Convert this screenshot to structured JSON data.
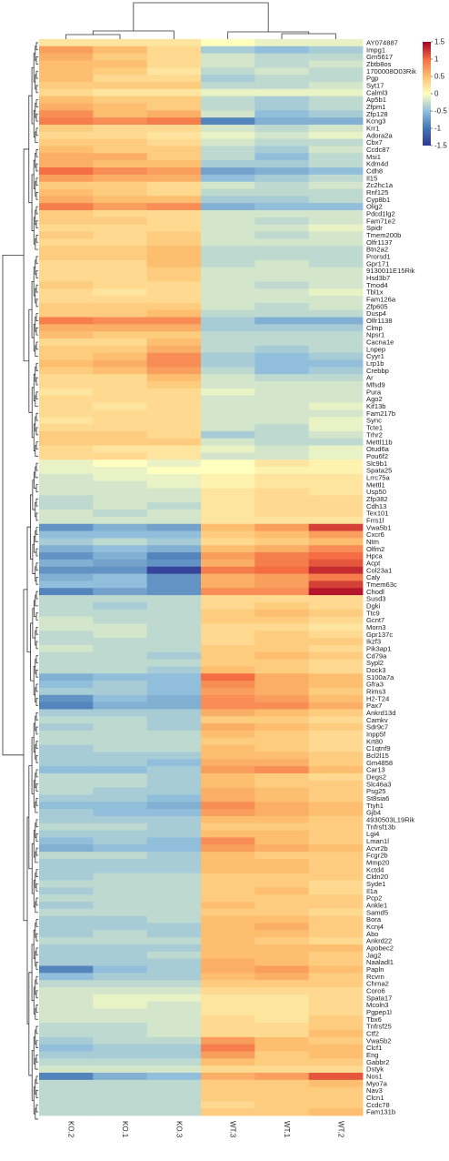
{
  "chart_data": {
    "type": "heatmap",
    "title": "",
    "xlabel": "",
    "ylabel": "",
    "columns": [
      "KO.2",
      "KO.1",
      "KO.3",
      "WT.3",
      "WT.1",
      "WT.2"
    ],
    "rows": [
      "AY074887",
      "Impg1",
      "Gm5617",
      "Zbtb8os",
      "1700008O03Rik",
      "Pgp",
      "Syt17",
      "Calml3",
      "Ap5b1",
      "Zfpm1",
      "Zfp128",
      "Kcng3",
      "Krr1",
      "Adora2a",
      "Cbx7",
      "Ccdc87",
      "Msi1",
      "Kdm4d",
      "Cdh8",
      "Il15",
      "Zc2hc1a",
      "Rnf125",
      "Cyp8b1",
      "Olig2",
      "Pdcd1lg2",
      "Fam71e2",
      "Spidr",
      "Tmem200b",
      "Olfr1137",
      "Btn2a2",
      "Prorsd1",
      "Gpr171",
      "9130011E15Rik",
      "Hsd3b7",
      "Tmod4",
      "Tbl1x",
      "Fam126a",
      "Zfp605",
      "Dusp4",
      "Olfr1138",
      "Clmp",
      "Npsr1",
      "Cacna1e",
      "Lnpep",
      "Cyyr1",
      "Lrp1b",
      "Crebbp",
      "Ar",
      "Mfsd9",
      "Pura",
      "Ago2",
      "Kif13b",
      "Fam217b",
      "Sync",
      "Tcte1",
      "Trhr2",
      "Mettl11b",
      "Otud6a",
      "Pou6f2",
      "Slc9b1",
      "Spata25",
      "Lrrc75a",
      "Mettl1",
      "Usp50",
      "Zfp382",
      "Cdh13",
      "Tex101",
      "Frrs1l",
      "Vwa5b1",
      "Cxcr6",
      "Ntm",
      "Olfm2",
      "Hpca",
      "Acpt",
      "Col23a1",
      "Caly",
      "Tmem63c",
      "Chodl",
      "Susd3",
      "Dgki",
      "Ttc9",
      "Gcnt7",
      "Morn3",
      "Gpr137c",
      "Ikzf3",
      "Pik3ap1",
      "Cd79a",
      "Sypl2",
      "Dock3",
      "S100a7a",
      "Gfra3",
      "Rims3",
      "H2-T24",
      "Pax7",
      "Ankrd13d",
      "Camkv",
      "Sdr9c7",
      "Inpp5f",
      "Krt80",
      "C1qtnf9",
      "Bcl2l15",
      "Gm4858",
      "Car13",
      "Degs2",
      "Slc46a3",
      "Psg25",
      "St8sia6",
      "Ttyh1",
      "Gjb4",
      "4930503L19Rik",
      "Tnfrsf13b",
      "Lgi4",
      "Lman1l",
      "Acvr2b",
      "Fcgr2b",
      "Mmp20",
      "Kctd4",
      "Cldn20",
      "Syde1",
      "Il1a",
      "Pcp2",
      "Ankle1",
      "Samd5",
      "Bora",
      "Kcnj4",
      "Abo",
      "Ankrd22",
      "Apobec2",
      "Jag2",
      "Naaladl1",
      "Papln",
      "Rcvrn",
      "Chrna2",
      "Coro6",
      "Spata17",
      "Mcoln3",
      "Pgpep1l",
      "Tbx6",
      "Tnfrsf25",
      "Ctf2",
      "Vwa5b2",
      "Clcf1",
      "Eng",
      "Gabbr2",
      "Dstyk",
      "Nos1",
      "Myo7a",
      "Nav3",
      "Clcn1",
      "Ccdc78",
      "Fam131b"
    ],
    "values": [
      [
        0.2,
        0.2,
        0.2,
        0.0,
        -0.1,
        -0.1
      ],
      [
        0.7,
        0.5,
        0.3,
        -0.4,
        -0.5,
        -0.4
      ],
      [
        0.6,
        0.4,
        0.3,
        -0.2,
        -0.3,
        -0.3
      ],
      [
        0.5,
        0.5,
        0.3,
        -0.2,
        -0.3,
        -0.2
      ],
      [
        0.5,
        0.4,
        0.2,
        -0.3,
        -0.2,
        -0.3
      ],
      [
        0.5,
        0.3,
        0.3,
        -0.4,
        -0.3,
        -0.3
      ],
      [
        0.4,
        0.4,
        0.4,
        -0.3,
        -0.3,
        -0.2
      ],
      [
        0.3,
        0.2,
        0.2,
        -0.1,
        -0.1,
        -0.1
      ],
      [
        0.5,
        0.4,
        0.4,
        -0.3,
        -0.4,
        -0.3
      ],
      [
        0.6,
        0.5,
        0.4,
        -0.3,
        -0.4,
        -0.3
      ],
      [
        0.8,
        0.5,
        0.6,
        -0.2,
        -0.5,
        -0.4
      ],
      [
        0.9,
        0.8,
        0.9,
        -0.9,
        -0.6,
        -0.6
      ],
      [
        0.4,
        0.3,
        0.3,
        -0.2,
        -0.3,
        -0.2
      ],
      [
        0.3,
        0.3,
        0.2,
        -0.1,
        -0.2,
        -0.1
      ],
      [
        0.4,
        0.4,
        0.3,
        -0.2,
        -0.3,
        -0.3
      ],
      [
        0.5,
        0.4,
        0.4,
        -0.3,
        -0.4,
        -0.2
      ],
      [
        0.6,
        0.6,
        0.4,
        -0.3,
        -0.5,
        -0.3
      ],
      [
        0.6,
        0.5,
        0.5,
        -0.4,
        -0.4,
        -0.3
      ],
      [
        1.0,
        0.8,
        0.7,
        -0.7,
        -0.6,
        -0.5
      ],
      [
        0.7,
        0.6,
        0.6,
        -0.5,
        -0.4,
        -0.3
      ],
      [
        0.4,
        0.4,
        0.3,
        -0.2,
        -0.3,
        -0.2
      ],
      [
        0.5,
        0.4,
        0.3,
        -0.3,
        -0.3,
        -0.3
      ],
      [
        0.6,
        0.5,
        0.5,
        -0.4,
        -0.4,
        -0.3
      ],
      [
        0.9,
        0.7,
        0.8,
        -0.6,
        -0.5,
        -0.5
      ],
      [
        0.4,
        0.3,
        0.3,
        -0.2,
        -0.2,
        -0.2
      ],
      [
        0.4,
        0.4,
        0.3,
        -0.2,
        -0.3,
        -0.2
      ],
      [
        0.3,
        0.3,
        0.3,
        -0.2,
        -0.2,
        -0.1
      ],
      [
        0.4,
        0.3,
        0.4,
        -0.2,
        -0.3,
        -0.2
      ],
      [
        0.3,
        0.3,
        0.4,
        -0.2,
        -0.2,
        -0.2
      ],
      [
        0.4,
        0.4,
        0.5,
        -0.3,
        -0.3,
        -0.3
      ],
      [
        0.4,
        0.4,
        0.5,
        -0.3,
        -0.3,
        -0.3
      ],
      [
        0.3,
        0.3,
        0.5,
        -0.3,
        -0.2,
        -0.3
      ],
      [
        0.3,
        0.3,
        0.4,
        -0.2,
        -0.2,
        -0.2
      ],
      [
        0.3,
        0.3,
        0.4,
        -0.2,
        -0.2,
        -0.2
      ],
      [
        0.4,
        0.3,
        0.3,
        -0.2,
        -0.3,
        -0.2
      ],
      [
        0.3,
        0.2,
        0.3,
        -0.2,
        -0.2,
        -0.1
      ],
      [
        0.3,
        0.3,
        0.3,
        -0.2,
        -0.2,
        -0.2
      ],
      [
        0.4,
        0.4,
        0.4,
        -0.2,
        -0.3,
        -0.2
      ],
      [
        0.4,
        0.4,
        0.5,
        -0.3,
        -0.3,
        -0.3
      ],
      [
        0.9,
        0.8,
        0.8,
        -0.4,
        -0.6,
        -0.6
      ],
      [
        0.6,
        0.6,
        0.6,
        -0.4,
        -0.4,
        -0.4
      ],
      [
        0.5,
        0.4,
        0.4,
        -0.3,
        -0.3,
        -0.3
      ],
      [
        0.3,
        0.3,
        0.5,
        -0.3,
        -0.3,
        -0.3
      ],
      [
        0.4,
        0.4,
        0.6,
        -0.3,
        -0.4,
        -0.3
      ],
      [
        0.4,
        0.5,
        0.8,
        -0.4,
        -0.5,
        -0.4
      ],
      [
        0.5,
        0.6,
        0.8,
        -0.4,
        -0.5,
        -0.5
      ],
      [
        0.4,
        0.5,
        0.7,
        -0.3,
        -0.5,
        -0.4
      ],
      [
        0.3,
        0.3,
        0.5,
        -0.2,
        -0.3,
        -0.3
      ],
      [
        0.3,
        0.3,
        0.4,
        -0.2,
        -0.2,
        -0.2
      ],
      [
        0.2,
        0.3,
        0.3,
        -0.1,
        -0.2,
        -0.2
      ],
      [
        0.3,
        0.3,
        0.3,
        -0.2,
        -0.2,
        -0.2
      ],
      [
        0.3,
        0.2,
        0.3,
        -0.2,
        -0.2,
        -0.1
      ],
      [
        0.3,
        0.3,
        0.3,
        -0.2,
        -0.2,
        -0.2
      ],
      [
        0.2,
        0.3,
        0.3,
        -0.2,
        -0.2,
        -0.1
      ],
      [
        0.3,
        0.3,
        0.3,
        -0.2,
        -0.3,
        -0.1
      ],
      [
        0.4,
        0.4,
        0.3,
        -0.4,
        -0.3,
        -0.2
      ],
      [
        0.4,
        0.4,
        0.4,
        -0.2,
        -0.3,
        -0.3
      ],
      [
        0.3,
        0.2,
        0.2,
        -0.1,
        -0.2,
        -0.1
      ],
      [
        0.3,
        0.3,
        0.2,
        -0.2,
        -0.2,
        -0.1
      ],
      [
        -0.1,
        0.0,
        -0.1,
        0.0,
        0.2,
        0.1
      ],
      [
        -0.1,
        -0.1,
        0.0,
        0.0,
        0.1,
        0.1
      ],
      [
        -0.2,
        -0.1,
        -0.1,
        0.1,
        0.2,
        0.2
      ],
      [
        -0.2,
        -0.2,
        -0.1,
        0.1,
        0.2,
        0.2
      ],
      [
        -0.2,
        -0.2,
        -0.2,
        0.2,
        0.3,
        0.2
      ],
      [
        -0.3,
        -0.2,
        -0.2,
        0.2,
        0.3,
        0.3
      ],
      [
        -0.3,
        -0.2,
        -0.3,
        0.2,
        0.3,
        0.3
      ],
      [
        -0.2,
        -0.3,
        -0.2,
        0.2,
        0.3,
        0.3
      ],
      [
        -0.2,
        -0.2,
        -0.2,
        0.2,
        0.2,
        0.2
      ],
      [
        -0.8,
        -0.6,
        -0.7,
        0.5,
        0.7,
        1.2
      ],
      [
        -0.5,
        -0.5,
        -0.5,
        0.4,
        0.5,
        0.7
      ],
      [
        -0.4,
        -0.3,
        -0.4,
        0.3,
        0.4,
        0.5
      ],
      [
        -0.6,
        -0.5,
        -0.6,
        0.5,
        0.6,
        0.8
      ],
      [
        -0.8,
        -0.6,
        -0.9,
        0.7,
        0.9,
        1.0
      ],
      [
        -0.6,
        -0.7,
        -0.8,
        0.6,
        0.9,
        1.1
      ],
      [
        -0.8,
        -0.8,
        -1.4,
        0.9,
        1.0,
        1.3
      ],
      [
        -0.6,
        -0.5,
        -0.8,
        0.6,
        0.7,
        0.9
      ],
      [
        -0.5,
        -0.5,
        -0.8,
        0.6,
        0.7,
        1.2
      ],
      [
        -0.9,
        -0.7,
        -0.8,
        0.8,
        0.8,
        1.4
      ],
      [
        -0.3,
        -0.3,
        -0.3,
        0.3,
        0.3,
        0.3
      ],
      [
        -0.3,
        -0.4,
        -0.3,
        0.3,
        0.4,
        0.3
      ],
      [
        -0.3,
        -0.3,
        -0.3,
        0.4,
        0.5,
        0.4
      ],
      [
        -0.2,
        -0.3,
        -0.3,
        0.4,
        0.4,
        0.3
      ],
      [
        -0.2,
        -0.2,
        -0.3,
        0.3,
        0.3,
        0.2
      ],
      [
        -0.3,
        -0.2,
        -0.3,
        0.3,
        0.4,
        0.3
      ],
      [
        -0.3,
        -0.3,
        -0.3,
        0.3,
        0.4,
        0.4
      ],
      [
        -0.2,
        -0.3,
        -0.3,
        0.4,
        0.4,
        0.3
      ],
      [
        -0.3,
        -0.3,
        -0.4,
        0.4,
        0.5,
        0.4
      ],
      [
        -0.3,
        -0.3,
        -0.3,
        0.4,
        0.4,
        0.3
      ],
      [
        -0.3,
        -0.3,
        -0.4,
        0.5,
        0.4,
        0.3
      ],
      [
        -0.6,
        -0.5,
        -0.5,
        1.0,
        0.6,
        0.5
      ],
      [
        -0.5,
        -0.4,
        -0.5,
        0.8,
        0.6,
        0.5
      ],
      [
        -0.4,
        -0.4,
        -0.5,
        0.7,
        0.6,
        0.4
      ],
      [
        -0.8,
        -0.5,
        -0.6,
        0.8,
        0.7,
        0.5
      ],
      [
        -0.9,
        -0.6,
        -0.6,
        0.8,
        0.8,
        0.6
      ],
      [
        -0.4,
        -0.4,
        -0.4,
        0.6,
        0.5,
        0.4
      ],
      [
        -0.3,
        -0.3,
        -0.4,
        0.4,
        0.4,
        0.3
      ],
      [
        -0.4,
        -0.3,
        -0.4,
        0.6,
        0.5,
        0.4
      ],
      [
        -0.3,
        -0.3,
        -0.3,
        0.5,
        0.4,
        0.3
      ],
      [
        -0.3,
        -0.3,
        -0.3,
        0.4,
        0.4,
        0.3
      ],
      [
        -0.4,
        -0.3,
        -0.3,
        0.5,
        0.4,
        0.3
      ],
      [
        -0.4,
        -0.4,
        -0.4,
        0.5,
        0.5,
        0.4
      ],
      [
        -0.4,
        -0.4,
        -0.5,
        0.6,
        0.6,
        0.4
      ],
      [
        -0.5,
        -0.5,
        -0.4,
        0.7,
        0.8,
        0.5
      ],
      [
        -0.3,
        -0.3,
        -0.4,
        0.5,
        0.4,
        0.3
      ],
      [
        -0.3,
        -0.3,
        -0.4,
        0.5,
        0.4,
        0.4
      ],
      [
        -0.3,
        -0.4,
        -0.4,
        0.6,
        0.5,
        0.4
      ],
      [
        -0.4,
        -0.4,
        -0.5,
        0.6,
        0.5,
        0.4
      ],
      [
        -0.5,
        -0.5,
        -0.6,
        0.8,
        0.6,
        0.5
      ],
      [
        -0.4,
        -0.5,
        -0.5,
        0.7,
        0.6,
        0.5
      ],
      [
        -0.4,
        -0.4,
        -0.4,
        0.5,
        0.5,
        0.4
      ],
      [
        -0.3,
        -0.3,
        -0.4,
        0.4,
        0.4,
        0.4
      ],
      [
        -0.4,
        -0.4,
        -0.4,
        0.5,
        0.5,
        0.4
      ],
      [
        -0.5,
        -0.4,
        -0.5,
        0.8,
        0.5,
        0.4
      ],
      [
        -0.6,
        -0.5,
        -0.5,
        0.7,
        0.6,
        0.5
      ],
      [
        -0.3,
        -0.3,
        -0.4,
        0.5,
        0.4,
        0.4
      ],
      [
        -0.4,
        -0.4,
        -0.4,
        0.5,
        0.5,
        0.4
      ],
      [
        -0.4,
        -0.4,
        -0.4,
        0.5,
        0.5,
        0.4
      ],
      [
        -0.4,
        -0.3,
        -0.3,
        0.4,
        0.4,
        0.4
      ],
      [
        -0.3,
        -0.3,
        -0.3,
        0.4,
        0.4,
        0.3
      ],
      [
        -0.4,
        -0.3,
        -0.3,
        0.4,
        0.5,
        0.3
      ],
      [
        -0.3,
        -0.3,
        -0.3,
        0.4,
        0.4,
        0.4
      ],
      [
        -0.4,
        -0.3,
        -0.3,
        0.5,
        0.4,
        0.4
      ],
      [
        -0.3,
        -0.3,
        -0.3,
        0.4,
        0.4,
        0.3
      ],
      [
        -0.4,
        -0.4,
        -0.3,
        0.5,
        0.5,
        0.4
      ],
      [
        -0.4,
        -0.4,
        -0.4,
        0.5,
        0.6,
        0.4
      ],
      [
        -0.4,
        -0.3,
        -0.4,
        0.5,
        0.5,
        0.4
      ],
      [
        -0.3,
        -0.3,
        -0.3,
        0.5,
        0.4,
        0.3
      ],
      [
        -0.4,
        -0.4,
        -0.4,
        0.5,
        0.5,
        0.5
      ],
      [
        -0.4,
        -0.4,
        -0.3,
        0.5,
        0.5,
        0.4
      ],
      [
        -0.4,
        -0.4,
        -0.4,
        0.6,
        0.5,
        0.4
      ],
      [
        -0.9,
        -0.5,
        -0.4,
        0.6,
        0.7,
        0.5
      ],
      [
        -0.5,
        -0.4,
        -0.4,
        0.5,
        0.6,
        0.4
      ],
      [
        -0.3,
        -0.3,
        -0.3,
        0.4,
        0.4,
        0.4
      ],
      [
        -0.2,
        -0.2,
        -0.2,
        0.3,
        0.3,
        0.3
      ],
      [
        -0.2,
        -0.1,
        -0.1,
        0.2,
        0.2,
        0.3
      ],
      [
        -0.2,
        -0.1,
        -0.2,
        0.2,
        0.2,
        0.3
      ],
      [
        -0.2,
        -0.2,
        -0.2,
        0.2,
        0.2,
        0.3
      ],
      [
        -0.2,
        -0.2,
        -0.2,
        0.3,
        0.2,
        0.4
      ],
      [
        -0.3,
        -0.3,
        -0.2,
        0.3,
        0.3,
        0.4
      ],
      [
        -0.3,
        -0.3,
        -0.2,
        0.3,
        0.3,
        0.5
      ],
      [
        -0.4,
        -0.3,
        -0.3,
        0.7,
        0.5,
        0.4
      ],
      [
        -0.5,
        -0.4,
        -0.4,
        0.9,
        0.5,
        0.5
      ],
      [
        -0.4,
        -0.4,
        -0.4,
        0.7,
        0.4,
        0.5
      ],
      [
        -0.3,
        -0.3,
        -0.3,
        0.5,
        0.4,
        0.4
      ],
      [
        -0.2,
        -0.2,
        -0.2,
        0.3,
        0.3,
        0.3
      ],
      [
        -0.9,
        -0.6,
        -0.5,
        0.6,
        0.7,
        1.1
      ],
      [
        -0.3,
        -0.3,
        -0.3,
        0.4,
        0.4,
        0.5
      ],
      [
        -0.3,
        -0.3,
        -0.3,
        0.4,
        0.4,
        0.4
      ],
      [
        -0.3,
        -0.3,
        -0.3,
        0.4,
        0.4,
        0.4
      ],
      [
        -0.3,
        -0.3,
        -0.3,
        0.3,
        0.4,
        0.4
      ],
      [
        -0.3,
        -0.3,
        -0.3,
        0.4,
        0.4,
        0.5
      ]
    ],
    "color_scale": {
      "min": -1.5,
      "max": 1.5,
      "ticks": [
        1.5,
        1,
        0.5,
        0,
        -0.5,
        -1,
        -1.5
      ]
    },
    "colors": {
      "low": "#313695",
      "mid": "#ffffbf",
      "high": "#a50026"
    },
    "legend_position": "top-right",
    "column_dendrogram": true,
    "row_dendrogram": true,
    "column_label_rotation": "vertical"
  }
}
